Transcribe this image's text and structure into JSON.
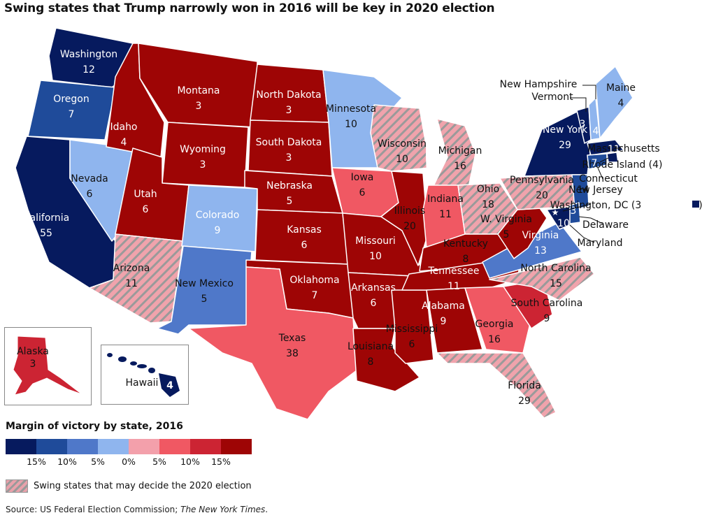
{
  "title": "Swing states that Trump narrowly won in 2016 will be key in 2020 election",
  "colors": {
    "d15": "#061a5e",
    "d10": "#1f4b9a",
    "d5": "#4f78c9",
    "d0": "#8fb5ee",
    "r0": "#f3a0ab",
    "r5": "#f05863",
    "r10": "#cc2433",
    "r15": "#9e0505",
    "swing_stripe": "#9a9a9a"
  },
  "states": [
    {
      "name": "Washington",
      "ev": "12"
    },
    {
      "name": "Oregon",
      "ev": "7"
    },
    {
      "name": "California",
      "ev": "55"
    },
    {
      "name": "Nevada",
      "ev": "6"
    },
    {
      "name": "Idaho",
      "ev": "4"
    },
    {
      "name": "Montana",
      "ev": "3"
    },
    {
      "name": "Wyoming",
      "ev": "3"
    },
    {
      "name": "Utah",
      "ev": "6"
    },
    {
      "name": "Arizona",
      "ev": "11"
    },
    {
      "name": "Colorado",
      "ev": "9"
    },
    {
      "name": "New Mexico",
      "ev": "5"
    },
    {
      "name": "North Dakota",
      "ev": "3"
    },
    {
      "name": "South Dakota",
      "ev": "3"
    },
    {
      "name": "Nebraska",
      "ev": "5"
    },
    {
      "name": "Kansas",
      "ev": "6"
    },
    {
      "name": "Oklahoma",
      "ev": "7"
    },
    {
      "name": "Texas",
      "ev": "38"
    },
    {
      "name": "Minnesota",
      "ev": "10"
    },
    {
      "name": "Iowa",
      "ev": "6"
    },
    {
      "name": "Missouri",
      "ev": "10"
    },
    {
      "name": "Arkansas",
      "ev": "6"
    },
    {
      "name": "Louisiana",
      "ev": "8"
    },
    {
      "name": "Wisconsin",
      "ev": "10"
    },
    {
      "name": "Illinois",
      "ev": "20"
    },
    {
      "name": "Mississippi",
      "ev": "6"
    },
    {
      "name": "Michigan",
      "ev": "16"
    },
    {
      "name": "Indiana",
      "ev": "11"
    },
    {
      "name": "Ohio",
      "ev": "18"
    },
    {
      "name": "Kentucky",
      "ev": "8"
    },
    {
      "name": "Tennessee",
      "ev": "11"
    },
    {
      "name": "Alabama",
      "ev": "9"
    },
    {
      "name": "Georgia",
      "ev": "16"
    },
    {
      "name": "Florida",
      "ev": "29"
    },
    {
      "name": "South Carolina",
      "ev": "9"
    },
    {
      "name": "North Carolina",
      "ev": "15"
    },
    {
      "name": "Virginia",
      "ev": "13"
    },
    {
      "name": "W. Virginia",
      "ev": "5"
    },
    {
      "name": "Pennsylvania",
      "ev": "20"
    },
    {
      "name": "New York",
      "ev": "29"
    },
    {
      "name": "Vermont",
      "ev": "3"
    },
    {
      "name": "New Hampshire",
      "ev": "4"
    },
    {
      "name": "Maine",
      "ev": "4"
    },
    {
      "name": "Massachusetts",
      "ev": "11"
    },
    {
      "name": "Rhode Island (4)"
    },
    {
      "name": "Connecticut",
      "ev": "7"
    },
    {
      "name": "New Jersey",
      "ev": "14"
    },
    {
      "name": "Delaware",
      "ev": "3"
    },
    {
      "name": "Maryland",
      "ev": "10"
    },
    {
      "name": "Washington, DC (3",
      "suffix": ")"
    },
    {
      "name": "Alaska",
      "ev": "3"
    },
    {
      "name": "Hawaii",
      "ev": "4"
    }
  ],
  "legend": {
    "title": "Margin of victory by state, 2016",
    "ticks": [
      "15%",
      "10%",
      "5%",
      "0%",
      "5%",
      "10%",
      "15%"
    ],
    "swing_label": "Swing states that may decide the 2020 election"
  },
  "source": {
    "prefix": "Source: US Federal Election Commission; ",
    "italic": "The New York Times",
    "suffix": "."
  }
}
